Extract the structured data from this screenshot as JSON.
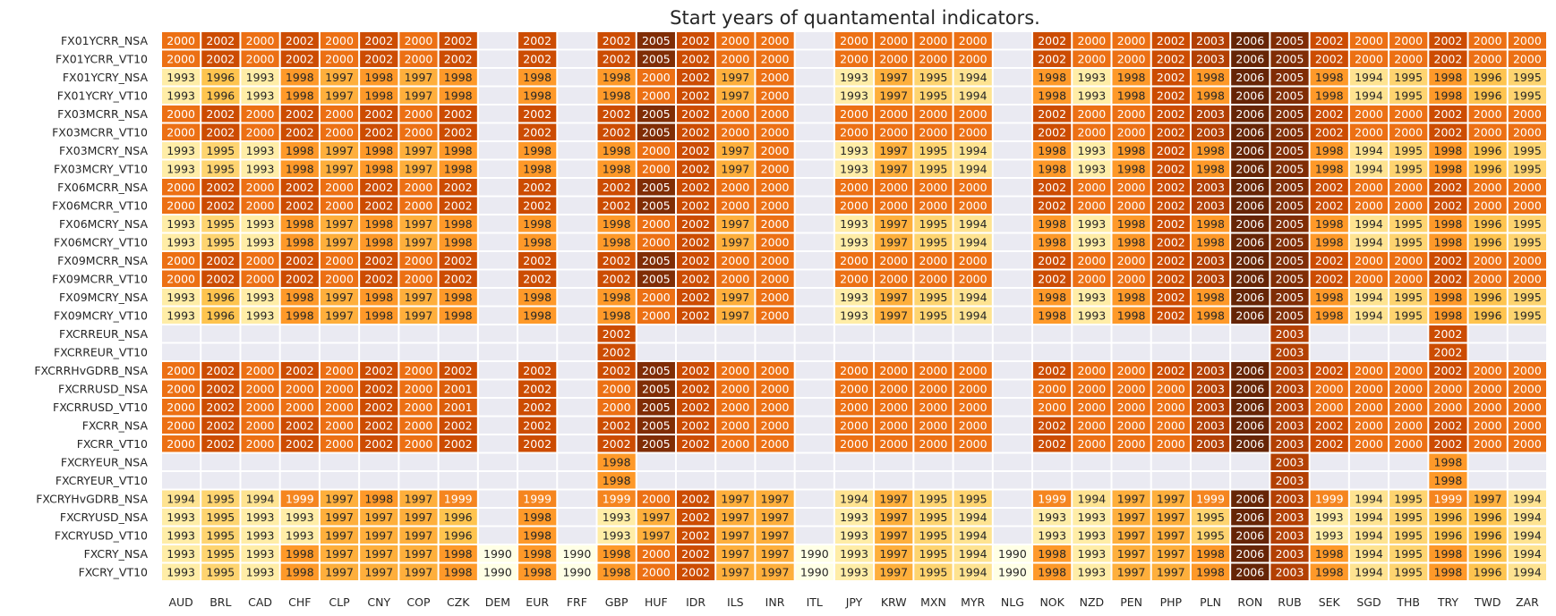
{
  "chart_data": {
    "type": "heatmap",
    "title": "Start years of quantamental indicators.",
    "xlabel": "",
    "ylabel": "",
    "columns": [
      "AUD",
      "BRL",
      "CAD",
      "CHF",
      "CLP",
      "CNY",
      "COP",
      "CZK",
      "DEM",
      "EUR",
      "FRF",
      "GBP",
      "HUF",
      "IDR",
      "ILS",
      "INR",
      "ITL",
      "JPY",
      "KRW",
      "MXN",
      "MYR",
      "NLG",
      "NOK",
      "NZD",
      "PEN",
      "PHP",
      "PLN",
      "RON",
      "RUB",
      "SEK",
      "SGD",
      "THB",
      "TRY",
      "TWD",
      "ZAR"
    ],
    "rows": [
      {
        "label": "FX01YCRR_NSA",
        "values": [
          2000,
          2002,
          2000,
          2002,
          2000,
          2002,
          2000,
          2002,
          null,
          2002,
          null,
          2002,
          2005,
          2002,
          2000,
          2000,
          null,
          2000,
          2000,
          2000,
          2000,
          null,
          2002,
          2000,
          2000,
          2002,
          2003,
          2006,
          2005,
          2002,
          2000,
          2000,
          2002,
          2000,
          2000
        ]
      },
      {
        "label": "FX01YCRR_VT10",
        "values": [
          2000,
          2002,
          2000,
          2002,
          2000,
          2002,
          2000,
          2002,
          null,
          2002,
          null,
          2002,
          2005,
          2002,
          2000,
          2000,
          null,
          2000,
          2000,
          2000,
          2000,
          null,
          2002,
          2000,
          2000,
          2002,
          2003,
          2006,
          2005,
          2002,
          2000,
          2000,
          2002,
          2000,
          2000
        ]
      },
      {
        "label": "FX01YCRY_NSA",
        "values": [
          1993,
          1996,
          1993,
          1998,
          1997,
          1998,
          1997,
          1998,
          null,
          1998,
          null,
          1998,
          2000,
          2002,
          1997,
          2000,
          null,
          1993,
          1997,
          1995,
          1994,
          null,
          1998,
          1993,
          1998,
          2002,
          1998,
          2006,
          2005,
          1998,
          1994,
          1995,
          1998,
          1996,
          1995
        ]
      },
      {
        "label": "FX01YCRY_VT10",
        "values": [
          1993,
          1996,
          1993,
          1998,
          1997,
          1998,
          1997,
          1998,
          null,
          1998,
          null,
          1998,
          2000,
          2002,
          1997,
          2000,
          null,
          1993,
          1997,
          1995,
          1994,
          null,
          1998,
          1993,
          1998,
          2002,
          1998,
          2006,
          2005,
          1998,
          1994,
          1995,
          1998,
          1996,
          1995
        ]
      },
      {
        "label": "FX03MCRR_NSA",
        "values": [
          2000,
          2002,
          2000,
          2002,
          2000,
          2002,
          2000,
          2002,
          null,
          2002,
          null,
          2002,
          2005,
          2002,
          2000,
          2000,
          null,
          2000,
          2000,
          2000,
          2000,
          null,
          2002,
          2000,
          2000,
          2002,
          2003,
          2006,
          2005,
          2002,
          2000,
          2000,
          2002,
          2000,
          2000
        ]
      },
      {
        "label": "FX03MCRR_VT10",
        "values": [
          2000,
          2002,
          2000,
          2002,
          2000,
          2002,
          2000,
          2002,
          null,
          2002,
          null,
          2002,
          2005,
          2002,
          2000,
          2000,
          null,
          2000,
          2000,
          2000,
          2000,
          null,
          2002,
          2000,
          2000,
          2002,
          2003,
          2006,
          2005,
          2002,
          2000,
          2000,
          2002,
          2000,
          2000
        ]
      },
      {
        "label": "FX03MCRY_NSA",
        "values": [
          1993,
          1995,
          1993,
          1998,
          1997,
          1998,
          1997,
          1998,
          null,
          1998,
          null,
          1998,
          2000,
          2002,
          1997,
          2000,
          null,
          1993,
          1997,
          1995,
          1994,
          null,
          1998,
          1993,
          1998,
          2002,
          1998,
          2006,
          2005,
          1998,
          1994,
          1995,
          1998,
          1996,
          1995
        ]
      },
      {
        "label": "FX03MCRY_VT10",
        "values": [
          1993,
          1995,
          1993,
          1998,
          1997,
          1998,
          1997,
          1998,
          null,
          1998,
          null,
          1998,
          2000,
          2002,
          1997,
          2000,
          null,
          1993,
          1997,
          1995,
          1994,
          null,
          1998,
          1993,
          1998,
          2002,
          1998,
          2006,
          2005,
          1998,
          1994,
          1995,
          1998,
          1996,
          1995
        ]
      },
      {
        "label": "FX06MCRR_NSA",
        "values": [
          2000,
          2002,
          2000,
          2002,
          2000,
          2002,
          2000,
          2002,
          null,
          2002,
          null,
          2002,
          2005,
          2002,
          2000,
          2000,
          null,
          2000,
          2000,
          2000,
          2000,
          null,
          2002,
          2000,
          2000,
          2002,
          2003,
          2006,
          2005,
          2002,
          2000,
          2000,
          2002,
          2000,
          2000
        ]
      },
      {
        "label": "FX06MCRR_VT10",
        "values": [
          2000,
          2002,
          2000,
          2002,
          2000,
          2002,
          2000,
          2002,
          null,
          2002,
          null,
          2002,
          2005,
          2002,
          2000,
          2000,
          null,
          2000,
          2000,
          2000,
          2000,
          null,
          2002,
          2000,
          2000,
          2002,
          2003,
          2006,
          2005,
          2002,
          2000,
          2000,
          2002,
          2000,
          2000
        ]
      },
      {
        "label": "FX06MCRY_NSA",
        "values": [
          1993,
          1995,
          1993,
          1998,
          1997,
          1998,
          1997,
          1998,
          null,
          1998,
          null,
          1998,
          2000,
          2002,
          1997,
          2000,
          null,
          1993,
          1997,
          1995,
          1994,
          null,
          1998,
          1993,
          1998,
          2002,
          1998,
          2006,
          2005,
          1998,
          1994,
          1995,
          1998,
          1996,
          1995
        ]
      },
      {
        "label": "FX06MCRY_VT10",
        "values": [
          1993,
          1995,
          1993,
          1998,
          1997,
          1998,
          1997,
          1998,
          null,
          1998,
          null,
          1998,
          2000,
          2002,
          1997,
          2000,
          null,
          1993,
          1997,
          1995,
          1994,
          null,
          1998,
          1993,
          1998,
          2002,
          1998,
          2006,
          2005,
          1998,
          1994,
          1995,
          1998,
          1996,
          1995
        ]
      },
      {
        "label": "FX09MCRR_NSA",
        "values": [
          2000,
          2002,
          2000,
          2002,
          2000,
          2002,
          2000,
          2002,
          null,
          2002,
          null,
          2002,
          2005,
          2002,
          2000,
          2000,
          null,
          2000,
          2000,
          2000,
          2000,
          null,
          2002,
          2000,
          2000,
          2002,
          2003,
          2006,
          2005,
          2002,
          2000,
          2000,
          2002,
          2000,
          2000
        ]
      },
      {
        "label": "FX09MCRR_VT10",
        "values": [
          2000,
          2002,
          2000,
          2002,
          2000,
          2002,
          2000,
          2002,
          null,
          2002,
          null,
          2002,
          2005,
          2002,
          2000,
          2000,
          null,
          2000,
          2000,
          2000,
          2000,
          null,
          2002,
          2000,
          2000,
          2002,
          2003,
          2006,
          2005,
          2002,
          2000,
          2000,
          2002,
          2000,
          2000
        ]
      },
      {
        "label": "FX09MCRY_NSA",
        "values": [
          1993,
          1996,
          1993,
          1998,
          1997,
          1998,
          1997,
          1998,
          null,
          1998,
          null,
          1998,
          2000,
          2002,
          1997,
          2000,
          null,
          1993,
          1997,
          1995,
          1994,
          null,
          1998,
          1993,
          1998,
          2002,
          1998,
          2006,
          2005,
          1998,
          1994,
          1995,
          1998,
          1996,
          1995
        ]
      },
      {
        "label": "FX09MCRY_VT10",
        "values": [
          1993,
          1996,
          1993,
          1998,
          1997,
          1998,
          1997,
          1998,
          null,
          1998,
          null,
          1998,
          2000,
          2002,
          1997,
          2000,
          null,
          1993,
          1997,
          1995,
          1994,
          null,
          1998,
          1993,
          1998,
          2002,
          1998,
          2006,
          2005,
          1998,
          1994,
          1995,
          1998,
          1996,
          1995
        ]
      },
      {
        "label": "FXCRREUR_NSA",
        "values": [
          null,
          null,
          null,
          null,
          null,
          null,
          null,
          null,
          null,
          null,
          null,
          2002,
          null,
          null,
          null,
          null,
          null,
          null,
          null,
          null,
          null,
          null,
          null,
          null,
          null,
          null,
          null,
          null,
          2003,
          null,
          null,
          null,
          2002,
          null,
          null
        ]
      },
      {
        "label": "FXCRREUR_VT10",
        "values": [
          null,
          null,
          null,
          null,
          null,
          null,
          null,
          null,
          null,
          null,
          null,
          2002,
          null,
          null,
          null,
          null,
          null,
          null,
          null,
          null,
          null,
          null,
          null,
          null,
          null,
          null,
          null,
          null,
          2003,
          null,
          null,
          null,
          2002,
          null,
          null
        ]
      },
      {
        "label": "FXCRRHvGDRB_NSA",
        "values": [
          2000,
          2002,
          2000,
          2002,
          2000,
          2002,
          2000,
          2002,
          null,
          2002,
          null,
          2002,
          2005,
          2002,
          2000,
          2000,
          null,
          2000,
          2000,
          2000,
          2000,
          null,
          2002,
          2000,
          2000,
          2002,
          2003,
          2006,
          2003,
          2002,
          2000,
          2000,
          2002,
          2000,
          2000
        ]
      },
      {
        "label": "FXCRRUSD_NSA",
        "values": [
          2000,
          2002,
          2000,
          2000,
          2000,
          2002,
          2000,
          2001,
          null,
          2002,
          null,
          2000,
          2005,
          2002,
          2000,
          2000,
          null,
          2000,
          2000,
          2000,
          2000,
          null,
          2000,
          2000,
          2000,
          2000,
          2003,
          2006,
          2003,
          2000,
          2000,
          2000,
          2000,
          2000,
          2000
        ]
      },
      {
        "label": "FXCRRUSD_VT10",
        "values": [
          2000,
          2002,
          2000,
          2000,
          2000,
          2002,
          2000,
          2001,
          null,
          2002,
          null,
          2000,
          2005,
          2002,
          2000,
          2000,
          null,
          2000,
          2000,
          2000,
          2000,
          null,
          2000,
          2000,
          2000,
          2000,
          2003,
          2006,
          2003,
          2000,
          2000,
          2000,
          2000,
          2000,
          2000
        ]
      },
      {
        "label": "FXCRR_NSA",
        "values": [
          2000,
          2002,
          2000,
          2002,
          2000,
          2002,
          2000,
          2002,
          null,
          2002,
          null,
          2002,
          2005,
          2002,
          2000,
          2000,
          null,
          2000,
          2000,
          2000,
          2000,
          null,
          2002,
          2000,
          2000,
          2000,
          2003,
          2006,
          2003,
          2002,
          2000,
          2000,
          2002,
          2000,
          2000
        ]
      },
      {
        "label": "FXCRR_VT10",
        "values": [
          2000,
          2002,
          2000,
          2002,
          2000,
          2002,
          2000,
          2002,
          null,
          2002,
          null,
          2002,
          2005,
          2002,
          2000,
          2000,
          null,
          2000,
          2000,
          2000,
          2000,
          null,
          2002,
          2000,
          2000,
          2000,
          2003,
          2006,
          2003,
          2002,
          2000,
          2000,
          2002,
          2000,
          2000
        ]
      },
      {
        "label": "FXCRYEUR_NSA",
        "values": [
          null,
          null,
          null,
          null,
          null,
          null,
          null,
          null,
          null,
          null,
          null,
          1998,
          null,
          null,
          null,
          null,
          null,
          null,
          null,
          null,
          null,
          null,
          null,
          null,
          null,
          null,
          null,
          null,
          2003,
          null,
          null,
          null,
          1998,
          null,
          null
        ]
      },
      {
        "label": "FXCRYEUR_VT10",
        "values": [
          null,
          null,
          null,
          null,
          null,
          null,
          null,
          null,
          null,
          null,
          null,
          1998,
          null,
          null,
          null,
          null,
          null,
          null,
          null,
          null,
          null,
          null,
          null,
          null,
          null,
          null,
          null,
          null,
          2003,
          null,
          null,
          null,
          1998,
          null,
          null
        ]
      },
      {
        "label": "FXCRYHvGDRB_NSA",
        "values": [
          1994,
          1995,
          1994,
          1999,
          1997,
          1998,
          1997,
          1999,
          null,
          1999,
          null,
          1999,
          2000,
          2002,
          1997,
          1997,
          null,
          1994,
          1997,
          1995,
          1995,
          null,
          1999,
          1994,
          1997,
          1997,
          1999,
          2006,
          2003,
          1999,
          1994,
          1995,
          1999,
          1997,
          1994
        ]
      },
      {
        "label": "FXCRYUSD_NSA",
        "values": [
          1993,
          1995,
          1993,
          1993,
          1997,
          1997,
          1997,
          1996,
          null,
          1998,
          null,
          1993,
          1997,
          2002,
          1997,
          1997,
          null,
          1993,
          1997,
          1995,
          1994,
          null,
          1993,
          1993,
          1997,
          1997,
          1995,
          2006,
          2003,
          1993,
          1994,
          1995,
          1996,
          1996,
          1994
        ]
      },
      {
        "label": "FXCRYUSD_VT10",
        "values": [
          1993,
          1995,
          1993,
          1993,
          1997,
          1997,
          1997,
          1996,
          null,
          1998,
          null,
          1993,
          1997,
          2002,
          1997,
          1997,
          null,
          1993,
          1997,
          1995,
          1994,
          null,
          1993,
          1993,
          1997,
          1997,
          1995,
          2006,
          2003,
          1993,
          1994,
          1995,
          1996,
          1996,
          1994
        ]
      },
      {
        "label": "FXCRY_NSA",
        "values": [
          1993,
          1995,
          1993,
          1998,
          1997,
          1997,
          1997,
          1998,
          1990,
          1998,
          1990,
          1998,
          2000,
          2002,
          1997,
          1997,
          1990,
          1993,
          1997,
          1995,
          1994,
          1990,
          1998,
          1993,
          1997,
          1997,
          1998,
          2006,
          2003,
          1998,
          1994,
          1995,
          1998,
          1996,
          1994
        ]
      },
      {
        "label": "FXCRY_VT10",
        "values": [
          1993,
          1995,
          1993,
          1998,
          1997,
          1997,
          1997,
          1998,
          1990,
          1998,
          1990,
          1998,
          2000,
          2002,
          1997,
          1997,
          1990,
          1993,
          1997,
          1995,
          1994,
          1990,
          1998,
          1993,
          1997,
          1997,
          1998,
          2006,
          2003,
          1998,
          1994,
          1995,
          1998,
          1996,
          1994
        ]
      }
    ],
    "color_scale": {
      "min": 1990,
      "max": 2006,
      "empty_color": "#eaeaf2",
      "background": "#ffffff"
    }
  }
}
